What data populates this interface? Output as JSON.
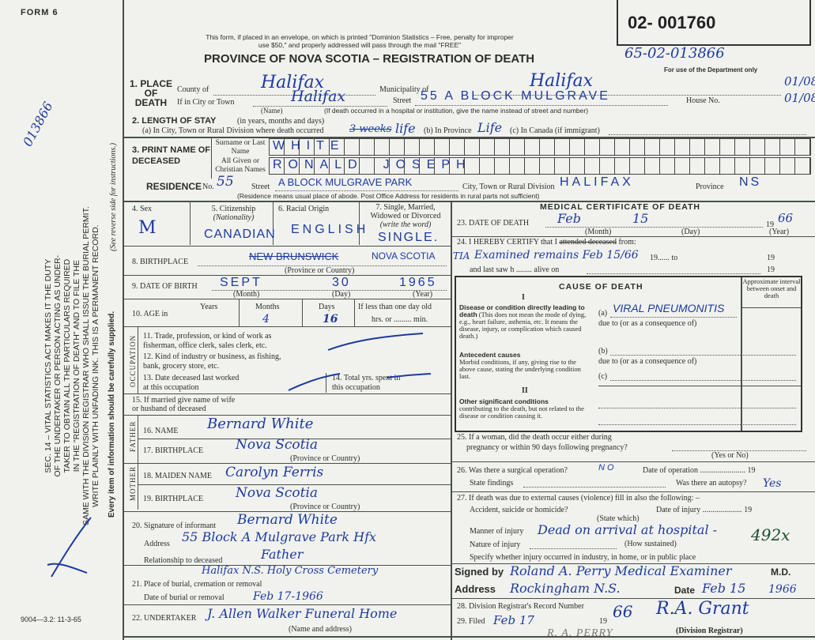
{
  "form_label": "FORM 6",
  "form_code": "9004—3.2: 11-3-65",
  "side_notice": [
    "SEC. 14 – VITAL STATISTICS ACT MAKES IT THE DUTY",
    "OF THE UNDERTAKER OR PERSON ACTING AS UNDER-",
    "TAKER TO OBTAIN ALL THE PARTICULARS REQUIRED",
    "IN THE \"REGISTRATION OF DEATH\" AND TO FILE THE",
    "SAME WITH THE DIVISION REGISTRAR WHO SHALL ISSUE THE BURIAL PERMIT.",
    "WRITE PLAINLY WITH UNFADING INK. THIS IS A PERMANENT RECORD."
  ],
  "side_note_reverse": "(See reverse side for instructions.)",
  "side_note_every": "Every item of information should be carefully supplied.",
  "side_hw_number": "013866",
  "header": {
    "mail_notice_1": "This form, if placed in an envelope, on which is printed \"Dominion Statistics – Free, penalty for improper",
    "mail_notice_2": "use $50,\" and properly addressed will pass through the mail \"FREE\"",
    "title": "PROVINCE OF NOVA SCOTIA – REGISTRATION OF DEATH"
  },
  "dept_box": {
    "number": "02- 001760",
    "hw_number": "65-02-013866",
    "label": "For use of the Department only",
    "code_1": "01/08",
    "code_2": "01/08"
  },
  "place_of_death": {
    "label": "1. PLACE OF DEATH",
    "county_label": "County of",
    "county": "Halifax",
    "municipality_label": "Municipality of",
    "municipality": "Halifax",
    "city_label": "If in City or Town",
    "city": "Halifax",
    "name_label": "(Name)",
    "street_label": "Street",
    "street": "55 A BLOCK MULGRAVE",
    "house_label": "House No.",
    "hospital_note": "(If death occurred in a hospital or institution, give the name instead of street and number)"
  },
  "length_of_stay": {
    "label": "2. LENGTH OF STAY",
    "label_note": "(in years, months and days)",
    "a_label": "(a) In City, Town or Rural Division where death occurred",
    "a_struck": "3 weeks",
    "a_value": "life",
    "b_label": "(b) In Province",
    "b_value": "Life",
    "c_label": "(c) In Canada (if immigrant)"
  },
  "name": {
    "label": "3. PRINT NAME OF DECEASED",
    "surname_label": "Surname or Last Name",
    "surname": "WHITE",
    "given_label": "All Given or Christian Names",
    "given": "RONALD  JOSEPH"
  },
  "residence": {
    "label": "RESIDENCE",
    "no_label": "No.",
    "no": "55",
    "street_label": "Street",
    "street": "A BLOCK MULGRAVE PARK",
    "city_label": "City, Town or Rural Division",
    "city": "HALIFAX",
    "province_label": "Province",
    "province": "NS",
    "note": "(Residence means usual place of abode. Post Office Address for residents in rural parts not sufficient)"
  },
  "personal": {
    "sex_label": "4. Sex",
    "sex": "M",
    "citizenship_label": "5. Citizenship",
    "citizenship_sub": "(Nationality)",
    "citizenship": "CANADIAN",
    "racial_label": "6. Racial Origin",
    "racial": "ENGLISH",
    "marital_label": "7. Single, Married, Widowed or Divorced",
    "marital_sub": "(write the word)",
    "marital": "SINGLE.",
    "birthplace_label": "8. BIRTHPLACE",
    "birthplace_struck": "NEW BRUNSWICK",
    "birthplace": "NOVA SCOTIA",
    "province_country": "(Province or Country)",
    "dob_label": "9. DATE OF BIRTH",
    "dob_month": "SEPT",
    "dob_day": "30",
    "dob_year": "1965",
    "month_l": "(Month)",
    "day_l": "(Day)",
    "year_l": "(Year)",
    "age_label": "10. AGE in",
    "years_label": "Years",
    "months_label": "Months",
    "days_label": "Days",
    "age_months": "4",
    "age_days": "16",
    "lt_day": "If less than one day old",
    "hrs_min": "hrs. or ......... min."
  },
  "occupation": {
    "side": "OCCUPATION",
    "q11": "11. Trade, profession, or kind of work as",
    "q11b": "fisherman, office clerk, sales clerk, etc.",
    "q12": "12. Kind of industry or business, as fishing,",
    "q12b": "bank, grocery store, etc.",
    "q13": "13. Date deceased last worked",
    "q13b": "at this occupation",
    "q14": "14. Total yrs. spent in",
    "q14b": "this occupation",
    "q15": "15. If married give name of wife",
    "q15b": "or husband of deceased"
  },
  "parents": {
    "father_side": "FATHER",
    "mother_side": "MOTHER",
    "q16": "16. NAME",
    "father_name": "Bernard White",
    "q17": "17. BIRTHPLACE",
    "father_birthplace": "Nova Scotia",
    "q18": "18. MAIDEN NAME",
    "mother_name": "Carolyn Ferris",
    "q19": "19. BIRTHPLACE",
    "mother_birthplace": "Nova Scotia",
    "province_country": "(Province or Country)"
  },
  "informant": {
    "q20": "20. Signature of informant",
    "signature": "Bernard White",
    "address_label": "Address",
    "address": "55 Block A Mulgrave Park Hfx",
    "relationship_label": "Relationship to deceased",
    "relationship": "Father"
  },
  "burial": {
    "q21": "21. Place of burial, cremation or removal",
    "place": "Halifax N.S. Holy Cross Cemetery",
    "date_label": "Date of burial or removal",
    "date": "Feb 17-1966",
    "q22": "22. UNDERTAKER",
    "undertaker": "J. Allen Walker Funeral Home",
    "name_address": "(Name and address)"
  },
  "medical": {
    "title": "MEDICAL CERTIFICATE OF DEATH",
    "q23": "23. DATE OF DEATH",
    "death_month": "Feb",
    "death_day": "15",
    "year_prefix": "19",
    "death_year": "66",
    "month_l": "(Month)",
    "day_l": "(Day)",
    "year_l": "(Year)",
    "q24": "24. I HEREBY CERTIFY that I",
    "q24_struck": "attended deceased",
    "q24_from": "from:",
    "certify_text": "Examined remains Feb 15/66",
    "certify_margin": "TIA",
    "to": "19...... to",
    "nineteen": "19",
    "last_saw": "and last saw h ........ alive on",
    "cause_title": "CAUSE OF DEATH",
    "roman1": "I",
    "roman2": "II",
    "interval_label": "Approximate interval between onset and death",
    "direct_label": "Disease or condition directly leading to death",
    "direct_text": "(This does not mean the mode of dying, e.g., heart failure, asthenia, etc. It means the disease, injury, or complication which caused death.)",
    "a_label": "(a)",
    "cause_a": "VIRAL PNEUMONITIS",
    "due_to": "due to (or as a consequence of)",
    "b_label": "(b)",
    "c_label": "(c)",
    "antecedent_label": "Antecedent causes",
    "antecedent_text": "Morbid conditions, if any, giving rise to the above cause, stating the underlying condition last.",
    "other_label": "Other significant conditions",
    "other_text": "contributing to the death, but not related to the disease or condition causing it.",
    "q25": "25. If a woman, did the death occur either during",
    "q25b": "pregnancy or within 90 days following pregnancy?",
    "yes_no": "(Yes or No)",
    "q26": "26. Was there a surgical operation?",
    "operation": "NO",
    "op_date": "Date of operation ....................... 19",
    "findings": "State findings",
    "autopsy_label": "Was there an autopsy?",
    "autopsy": "Yes",
    "q27": "27. If death was due to external causes (violence) fill in also the following: –",
    "accident": "Accident, suicide or homicide?",
    "state_which": "(State which)",
    "injury_date": "Date of injury .................... 19",
    "manner_label": "Manner of injury",
    "manner": "Dead on arrival at hospital -",
    "how": "(How sustained)",
    "nature_label": "Nature of injury",
    "nature_code": "492x",
    "specify": "Specify whether injury occurred in industry, in home, or in public place",
    "signed_label": "Signed by",
    "signed": "Roland A. Perry Medical Examiner",
    "md": "M.D.",
    "address_label": "Address",
    "address": "Rockingham N.S.",
    "date_label": "Date",
    "date": "Feb 15",
    "date_year": "1966",
    "q28": "28. Division Registrar's Record Number",
    "q29": "29. Filed",
    "filed": "Feb 17",
    "filed_year_prefix": "19",
    "filed_year": "66",
    "registrar_sig": "R.A. Grant",
    "registrar_label": "(Division Registrar)",
    "stamp_name": "R. A. PERRY"
  }
}
